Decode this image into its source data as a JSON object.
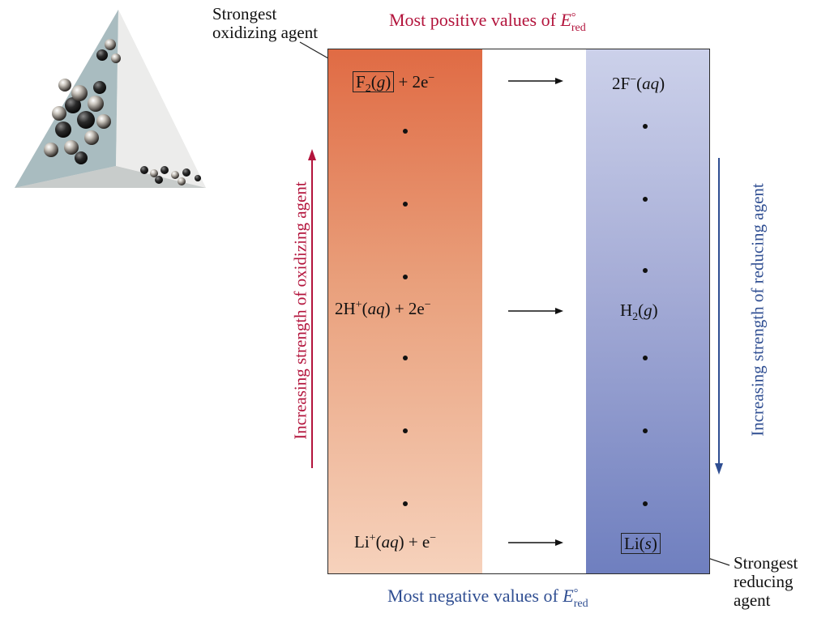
{
  "callouts": {
    "strongest_oxidizing": [
      "Strongest",
      "oxidizing agent"
    ],
    "strongest_reducing": [
      "Strongest",
      "reducing",
      "agent"
    ]
  },
  "headings": {
    "top": {
      "text": "Most positive values of ",
      "symbol": "E",
      "sup": "°",
      "sub": "red"
    },
    "bottom": {
      "text": "Most negative values of ",
      "symbol": "E",
      "sup": "°",
      "sub": "red"
    }
  },
  "side_labels": {
    "oxidizing": "Increasing strength of oxidizing agent",
    "reducing": "Increasing strength of reducing agent"
  },
  "reactions": {
    "top": {
      "left_species": {
        "base": "F",
        "sub": "2",
        "paren": "g"
      },
      "left_rest": " + 2e",
      "left_sup": "−",
      "right": {
        "base": "2F",
        "sup": "−",
        "paren": "aq"
      }
    },
    "middle": {
      "left": {
        "base": "2H",
        "sup": "+",
        "paren": "aq",
        "rest": " + 2e",
        "rest_sup": "−"
      },
      "right": {
        "base": "H",
        "sub": "2",
        "paren": "g"
      }
    },
    "bottom": {
      "left": {
        "base": "Li",
        "sup": "+",
        "paren": "aq",
        "rest": " + e",
        "rest_sup": "−"
      },
      "right": {
        "base": "Li",
        "paren": "s"
      }
    }
  },
  "colors": {
    "oxidizing_accent": "#b3143c",
    "reducing_accent": "#2f4e92",
    "left_column_top": "#e06b44",
    "left_column_bottom": "#f6d2bc",
    "right_column_top": "#ccd1ea",
    "right_column_bottom": "#6f7fbf"
  },
  "icons": {
    "corner_art": "molecular-crystal-prism-illustration",
    "up_arrow": "up-arrow-icon",
    "down_arrow": "down-arrow-icon",
    "reaction_arrow": "right-arrow-icon"
  }
}
